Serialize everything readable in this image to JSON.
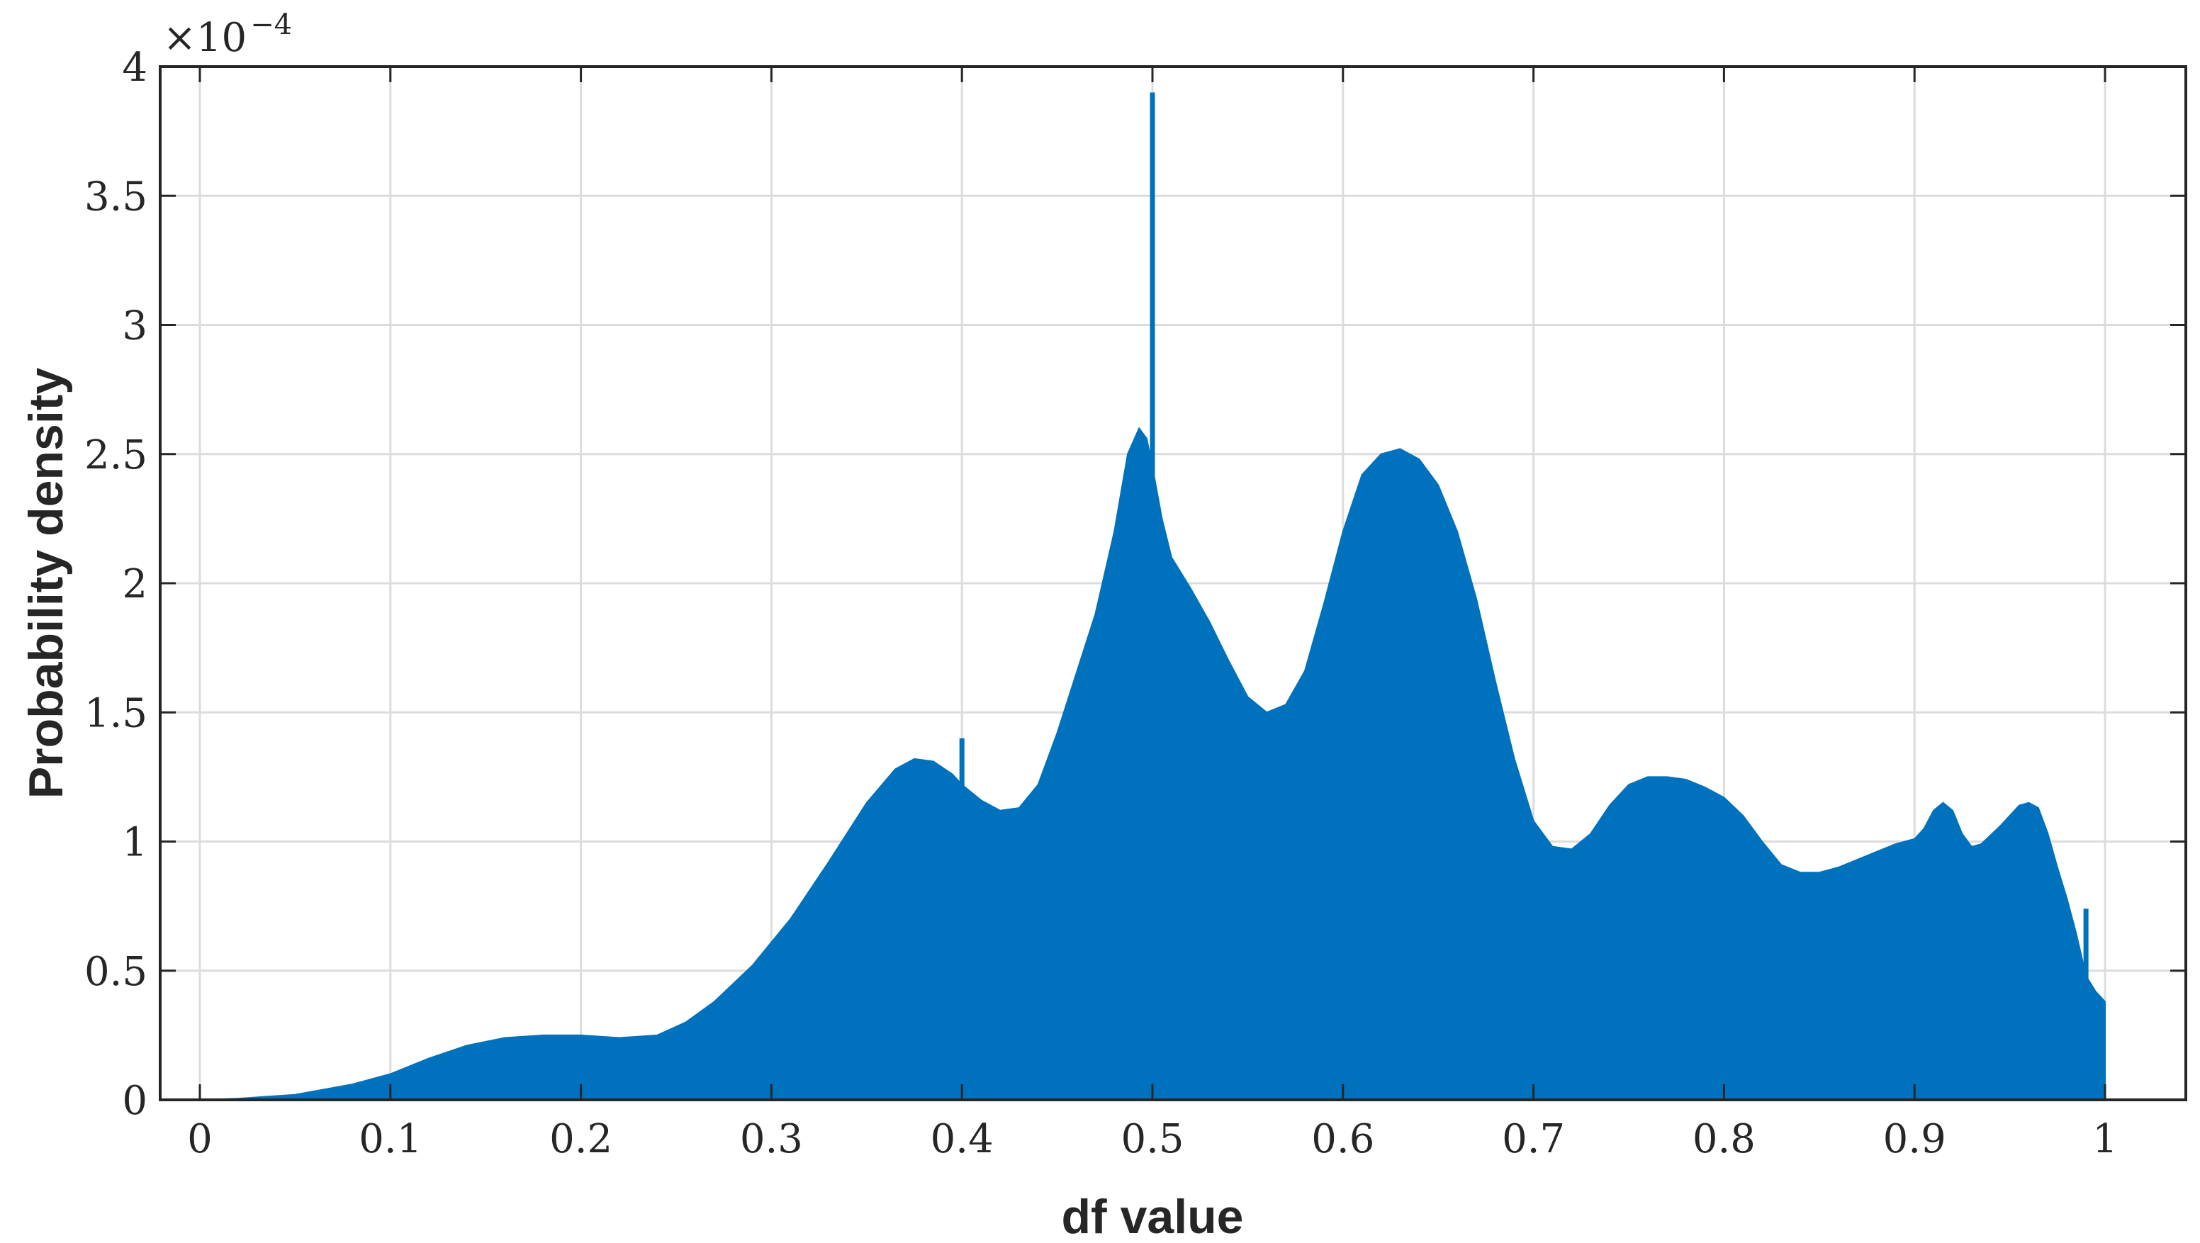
{
  "chart_data": {
    "type": "area",
    "title": "",
    "xlabel": "df value",
    "ylabel": "Probability density",
    "xlim": [
      0,
      1
    ],
    "ylim": [
      0,
      4
    ],
    "y_scale_factor_label": {
      "base": "×10",
      "exponent": "−4"
    },
    "x_ticks": [
      {
        "value": 0,
        "label": "0"
      },
      {
        "value": 0.1,
        "label": "0.1"
      },
      {
        "value": 0.2,
        "label": "0.2"
      },
      {
        "value": 0.3,
        "label": "0.3"
      },
      {
        "value": 0.4,
        "label": "0.4"
      },
      {
        "value": 0.5,
        "label": "0.5"
      },
      {
        "value": 0.6,
        "label": "0.6"
      },
      {
        "value": 0.7,
        "label": "0.7"
      },
      {
        "value": 0.8,
        "label": "0.8"
      },
      {
        "value": 0.9,
        "label": "0.9"
      },
      {
        "value": 1,
        "label": "1"
      }
    ],
    "y_ticks": [
      {
        "value": 0,
        "label": "0"
      },
      {
        "value": 0.5,
        "label": "0.5"
      },
      {
        "value": 1,
        "label": "1"
      },
      {
        "value": 1.5,
        "label": "1.5"
      },
      {
        "value": 2,
        "label": "2"
      },
      {
        "value": 2.5,
        "label": "2.5"
      },
      {
        "value": 3,
        "label": "3"
      },
      {
        "value": 3.5,
        "label": "3.5"
      },
      {
        "value": 4,
        "label": "4"
      }
    ],
    "grid": true,
    "colors": {
      "fill": "#0072BD",
      "grid": "#dcdcdc",
      "axis": "#262626",
      "background": "#ffffff"
    },
    "series": [
      {
        "points": [
          [
            0.0,
            0.0
          ],
          [
            0.02,
            0.005
          ],
          [
            0.05,
            0.02
          ],
          [
            0.08,
            0.06
          ],
          [
            0.1,
            0.1
          ],
          [
            0.12,
            0.16
          ],
          [
            0.14,
            0.21
          ],
          [
            0.16,
            0.24
          ],
          [
            0.18,
            0.25
          ],
          [
            0.2,
            0.25
          ],
          [
            0.22,
            0.24
          ],
          [
            0.24,
            0.25
          ],
          [
            0.255,
            0.3
          ],
          [
            0.27,
            0.38
          ],
          [
            0.29,
            0.52
          ],
          [
            0.31,
            0.7
          ],
          [
            0.33,
            0.92
          ],
          [
            0.35,
            1.15
          ],
          [
            0.365,
            1.28
          ],
          [
            0.375,
            1.32
          ],
          [
            0.385,
            1.31
          ],
          [
            0.395,
            1.26
          ],
          [
            0.4,
            1.22
          ],
          [
            0.41,
            1.16
          ],
          [
            0.42,
            1.12
          ],
          [
            0.43,
            1.13
          ],
          [
            0.44,
            1.22
          ],
          [
            0.45,
            1.42
          ],
          [
            0.46,
            1.65
          ],
          [
            0.47,
            1.88
          ],
          [
            0.48,
            2.2
          ],
          [
            0.487,
            2.5
          ],
          [
            0.493,
            2.6
          ],
          [
            0.497,
            2.56
          ],
          [
            0.5,
            2.45
          ],
          [
            0.505,
            2.25
          ],
          [
            0.51,
            2.1
          ],
          [
            0.52,
            1.98
          ],
          [
            0.53,
            1.85
          ],
          [
            0.54,
            1.7
          ],
          [
            0.55,
            1.56
          ],
          [
            0.56,
            1.5
          ],
          [
            0.57,
            1.53
          ],
          [
            0.58,
            1.66
          ],
          [
            0.59,
            1.92
          ],
          [
            0.6,
            2.2
          ],
          [
            0.61,
            2.42
          ],
          [
            0.62,
            2.5
          ],
          [
            0.63,
            2.52
          ],
          [
            0.64,
            2.48
          ],
          [
            0.65,
            2.38
          ],
          [
            0.66,
            2.2
          ],
          [
            0.67,
            1.94
          ],
          [
            0.68,
            1.62
          ],
          [
            0.69,
            1.32
          ],
          [
            0.7,
            1.08
          ],
          [
            0.71,
            0.98
          ],
          [
            0.72,
            0.97
          ],
          [
            0.73,
            1.03
          ],
          [
            0.74,
            1.14
          ],
          [
            0.75,
            1.22
          ],
          [
            0.76,
            1.25
          ],
          [
            0.77,
            1.25
          ],
          [
            0.78,
            1.24
          ],
          [
            0.79,
            1.21
          ],
          [
            0.8,
            1.17
          ],
          [
            0.81,
            1.1
          ],
          [
            0.82,
            1.0
          ],
          [
            0.83,
            0.91
          ],
          [
            0.84,
            0.88
          ],
          [
            0.85,
            0.88
          ],
          [
            0.86,
            0.9
          ],
          [
            0.87,
            0.93
          ],
          [
            0.88,
            0.96
          ],
          [
            0.89,
            0.99
          ],
          [
            0.9,
            1.01
          ],
          [
            0.905,
            1.05
          ],
          [
            0.91,
            1.12
          ],
          [
            0.915,
            1.15
          ],
          [
            0.92,
            1.12
          ],
          [
            0.925,
            1.03
          ],
          [
            0.93,
            0.98
          ],
          [
            0.935,
            0.99
          ],
          [
            0.945,
            1.06
          ],
          [
            0.955,
            1.14
          ],
          [
            0.96,
            1.15
          ],
          [
            0.965,
            1.13
          ],
          [
            0.97,
            1.03
          ],
          [
            0.975,
            0.9
          ],
          [
            0.98,
            0.78
          ],
          [
            0.985,
            0.64
          ],
          [
            0.99,
            0.48
          ],
          [
            0.995,
            0.42
          ],
          [
            1.0,
            0.38
          ]
        ],
        "spikes": [
          {
            "x": 0.4,
            "y": 1.4
          },
          {
            "x": 0.5,
            "y": 3.9
          },
          {
            "x": 0.99,
            "y": 0.74
          }
        ]
      }
    ]
  }
}
